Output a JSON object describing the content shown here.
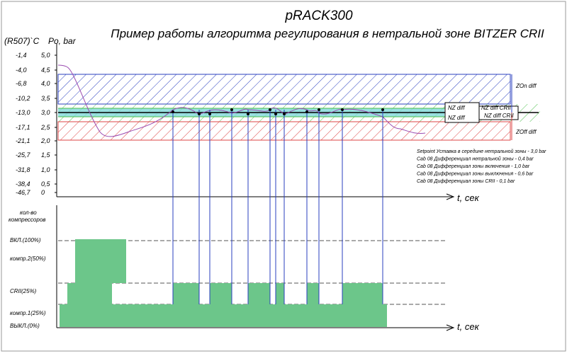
{
  "header": {
    "title": "pRACK300",
    "subtitle": "Пример работы алгоритма регулирования в нетральной зоне BITZER CRII"
  },
  "top_chart": {
    "temp_unit": "(R507)`C",
    "pressure_unit": "Po, bar",
    "temp_labels": [
      "-1,4",
      "-4,0",
      "-6,8",
      "-10,2",
      "-13,0",
      "-17,1",
      "-21,1",
      "-25,7",
      "-31,8",
      "-38,4",
      "-46,7"
    ],
    "pressure_labels": [
      "5,0",
      "4,5",
      "4,0",
      "3,5",
      "3,0",
      "2,5",
      "2,0",
      "1,5",
      "1,0",
      "0,5",
      "0"
    ],
    "time_label": "t, сек",
    "zones": {
      "zon": "ZOn diff",
      "zoff": "ZOff diff",
      "nz_upper": "NZ diff",
      "nz_lower": "NZ diff",
      "crii_upper": "NZ diff CRII",
      "crii_lower": "NZ diff CRII"
    },
    "notes": [
      "Setpoint Уставка в середине нетральной зоны - 3,0 bar",
      "Cab 08 Дифференциал нетральной зоны - 0,4 bar",
      "Cab 08 Дифференциал зоны включения - 1,0 bar",
      "Cab 08 Дифференциал зоны выключения - 0,6 bar",
      "Cab 08 Дифференциал зоны CRII  - 0,1 bar"
    ]
  },
  "bottom_chart": {
    "axis_label": [
      "кол-во",
      "компрессоров"
    ],
    "levels": [
      "ВКЛ.(100%)",
      "компр.2(50%)",
      "CRII(25%)",
      "компр.1(25%)",
      "ВЫКЛ.(0%)"
    ],
    "time_label": "t, сек"
  }
}
